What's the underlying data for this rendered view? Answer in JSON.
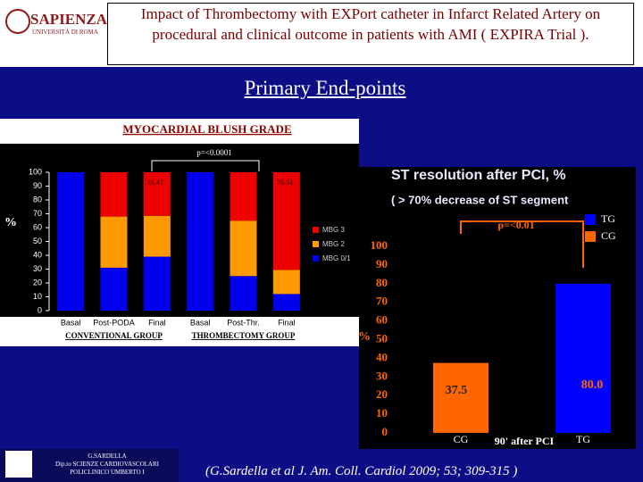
{
  "header": {
    "logo": "SAPIENZA",
    "logo_sub": "UNIVERSITÀ DI ROMA",
    "title": "Impact of Thrombectomy with EXPort catheter in Infarct Related Artery on procedural and clinical outcome in patients with AMI ( EXPIRA Trial )."
  },
  "subtitle": "Primary End-points",
  "chart_data": [
    {
      "type": "stacked_bar",
      "title": "MYOCARDIAL BLUSH GRADE",
      "annotation": "p=<0.0001",
      "y_label": "%",
      "categories": [
        "Basal",
        "Post-PODA",
        "Final",
        "Basal",
        "Post-Thr.",
        "Final"
      ],
      "groups": [
        "CONVENTIONAL GROUP",
        "THROMBECTOMY GROUP"
      ],
      "series": [
        {
          "name": "MBG 0/1",
          "color": "#0000ee",
          "values": [
            100,
            31,
            39,
            100,
            25,
            12
          ]
        },
        {
          "name": "MBG 2",
          "color": "#ff9900",
          "values": [
            0,
            37,
            29.53,
            0,
            40,
            17.46
          ]
        },
        {
          "name": "MBG 3",
          "color": "#ee0000",
          "values": [
            0,
            32,
            31.47,
            0,
            35,
            70.54
          ],
          "value_labels": [
            null,
            null,
            "31.47",
            null,
            null,
            "70.54"
          ]
        }
      ],
      "ylim": [
        0,
        100
      ],
      "yticks": [
        0,
        10,
        20,
        30,
        40,
        50,
        60,
        70,
        80,
        90,
        100
      ]
    },
    {
      "type": "bar",
      "title": "ST resolution after PCI, %",
      "subtitle": "( > 70% decrease of ST segment",
      "annotation": "p=<0.01",
      "y_label": "%",
      "x_label": "90' after PCI",
      "categories": [
        "CG",
        "TG"
      ],
      "values": [
        37.5,
        80
      ],
      "value_labels": [
        "37.5",
        "80.0"
      ],
      "colors": [
        "#ff6600",
        "#0000ff"
      ],
      "ylim": [
        0,
        100
      ],
      "yticks": [
        0,
        10,
        20,
        30,
        40,
        50,
        60,
        70,
        80,
        90,
        100
      ]
    }
  ],
  "footer": {
    "credit": [
      "G.SARDELLA",
      "Dip.to SCIENZE CARDIOVASCOLARI",
      "POLICLINICO UMBERTO I"
    ],
    "citation": "(G.Sardella et al J. Am. Coll. Cardiol 2009; 53; 309-315 )"
  }
}
